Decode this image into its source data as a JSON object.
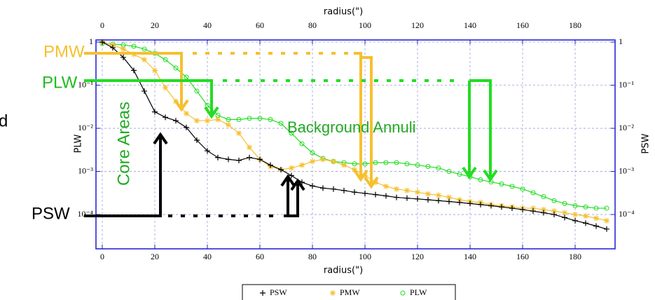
{
  "chart_data": {
    "type": "line",
    "xlabel": "radius(\")",
    "ylabel": "PLW",
    "y2label": "PSW",
    "x": [
      0,
      4,
      8,
      12,
      16,
      20,
      24,
      28,
      32,
      36,
      40,
      44,
      48,
      52,
      56,
      60,
      64,
      68,
      72,
      76,
      80,
      84,
      88,
      92,
      96,
      100,
      104,
      108,
      112,
      116,
      120,
      124,
      128,
      132,
      136,
      140,
      144,
      148,
      152,
      156,
      160,
      164,
      168,
      172,
      176,
      180,
      184,
      188,
      192
    ],
    "series": [
      {
        "name": "PSW",
        "color": "#000000",
        "marker": "plus",
        "values": [
          1.0,
          0.74,
          0.44,
          0.22,
          0.073,
          0.024,
          0.018,
          0.015,
          0.0105,
          0.0053,
          0.003,
          0.0021,
          0.0019,
          0.0018,
          0.0021,
          0.0019,
          0.0014,
          0.0011,
          0.0008,
          0.00056,
          0.00046,
          0.00041,
          0.00039,
          0.00036,
          0.00033,
          0.00031,
          0.00029,
          0.00027,
          0.00025,
          0.00024,
          0.00023,
          0.00022,
          0.00021,
          0.0002,
          0.00019,
          0.00018,
          0.00017,
          0.00016,
          0.00015,
          0.00014,
          0.00013,
          0.00012,
          0.00011,
          0.0001,
          8.5e-05,
          7.2e-05,
          6.3e-05,
          5.4e-05,
          4.6e-05
        ]
      },
      {
        "name": "PMW",
        "color": "#f5c030",
        "marker": "star",
        "values": [
          1.0,
          0.85,
          0.69,
          0.52,
          0.39,
          0.22,
          0.088,
          0.042,
          0.022,
          0.015,
          0.015,
          0.016,
          0.012,
          0.0077,
          0.0036,
          0.0019,
          0.0013,
          0.0011,
          0.0012,
          0.0014,
          0.0017,
          0.0019,
          0.0017,
          0.0014,
          0.0011,
          0.0008,
          0.00056,
          0.00045,
          0.00039,
          0.00036,
          0.00033,
          0.0003,
          0.00028,
          0.00025,
          0.00022,
          0.0002,
          0.00019,
          0.00017,
          0.00016,
          0.00015,
          0.00014,
          0.00014,
          0.00013,
          0.00012,
          0.00011,
          0.0001,
          9.2e-05,
          8.2e-05,
          7.2e-05
        ]
      },
      {
        "name": "PLW",
        "color": "#22dd22",
        "marker": "circle",
        "values": [
          0.93,
          0.9,
          0.86,
          0.8,
          0.69,
          0.55,
          0.39,
          0.25,
          0.154,
          0.073,
          0.034,
          0.02,
          0.016,
          0.016,
          0.017,
          0.017,
          0.016,
          0.013,
          0.0077,
          0.0044,
          0.0027,
          0.002,
          0.0017,
          0.0016,
          0.0015,
          0.0015,
          0.0016,
          0.0016,
          0.0016,
          0.0015,
          0.0014,
          0.0013,
          0.0012,
          0.001,
          0.00086,
          0.00075,
          0.00064,
          0.00057,
          0.00051,
          0.00045,
          0.00039,
          0.00032,
          0.00026,
          0.00021,
          0.00018,
          0.00016,
          0.00015,
          0.00014,
          0.00014
        ]
      }
    ],
    "xlim": [
      -2.4,
      195.2
    ],
    "xticks": [
      0,
      20,
      40,
      60,
      80,
      100,
      120,
      140,
      160,
      180
    ],
    "ylim": [
      1.6e-05,
      1.12
    ],
    "yticks": [
      {
        "value": 1,
        "label": "1"
      },
      {
        "value": 0.1,
        "label": "10⁻¹"
      },
      {
        "value": 0.01,
        "label": "10⁻²"
      },
      {
        "value": 0.001,
        "label": "10⁻³"
      },
      {
        "value": 0.0001,
        "label": "10⁻⁴"
      }
    ],
    "y2lim": [
      1.6e-05,
      1.12
    ],
    "y2ticks": [
      {
        "value": 1,
        "label": "1"
      },
      {
        "value": 0.1,
        "label": "10⁻¹"
      },
      {
        "value": 0.01,
        "label": "10⁻²"
      },
      {
        "value": 0.001,
        "label": "10⁻³"
      },
      {
        "value": 0.0001,
        "label": "10⁻⁴"
      }
    ],
    "log_y": true,
    "grid": true,
    "legend": "bottom",
    "annotations": [
      {
        "text": "PMW",
        "color": "#f5c030"
      },
      {
        "text": "PLW",
        "color": "#22bb22"
      },
      {
        "text": "PSW",
        "color": "#000000"
      },
      {
        "text": "d",
        "color": "#000000"
      },
      {
        "text": "Core Areas",
        "color": "#22aa22"
      },
      {
        "text": "Background Annuli",
        "color": "#22aa22"
      }
    ]
  }
}
